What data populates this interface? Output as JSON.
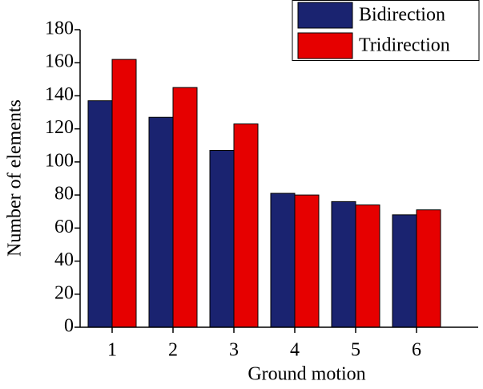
{
  "chart_data": {
    "type": "bar",
    "xlabel": "Ground motion",
    "ylabel": "Number of elements",
    "categories": [
      "1",
      "2",
      "3",
      "4",
      "5",
      "6"
    ],
    "series": [
      {
        "name": "Bidirection",
        "color": "#1a2370",
        "values": [
          137,
          127,
          107,
          81,
          76,
          68
        ]
      },
      {
        "name": "Tridirection",
        "color": "#e60000",
        "values": [
          162,
          145,
          123,
          80,
          74,
          71
        ]
      }
    ],
    "ylim": [
      0,
      180
    ],
    "yticks": [
      0,
      20,
      40,
      60,
      80,
      100,
      120,
      140,
      160,
      180
    ],
    "legend": "top-right"
  }
}
